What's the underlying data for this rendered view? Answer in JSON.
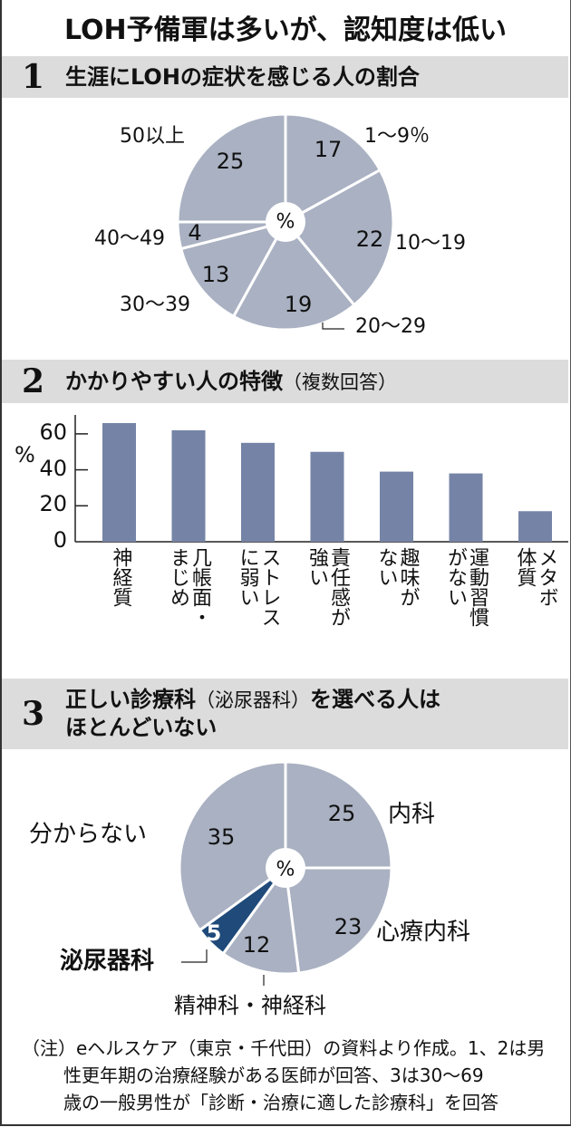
{
  "title": "LOH予備軍は多いが、認知度は低い",
  "colors": {
    "pie_fill": "#a9b1c2",
    "bar_fill": "#7584a6",
    "highlight_fill": "#1f4a7a",
    "header_bg": "#dcdcdc",
    "slice_separator": "#ffffff"
  },
  "sections": [
    {
      "num": "1",
      "title": "生涯にLOHの症状を感じる人の割合",
      "sub": ""
    },
    {
      "num": "2",
      "title": "かかりやすい人の特徴",
      "sub": "（複数回答）"
    },
    {
      "num": "3",
      "title": "正しい診療科",
      "sub": "（泌尿器科）",
      "title_rest": "を選べる人は",
      "title_line2": "ほとんどいない"
    }
  ],
  "chart_data": [
    {
      "type": "pie",
      "title": "生涯にLOHの症状を感じる人の割合",
      "unit": "%",
      "center_label": "%",
      "categories": [
        "1～9％",
        "10～19",
        "20～29",
        "30～39",
        "40～49",
        "50以上"
      ],
      "values": [
        17,
        22,
        19,
        13,
        4,
        25
      ],
      "start_angle_deg": 0,
      "direction": "clockwise"
    },
    {
      "type": "bar",
      "title": "かかりやすい人の特徴（複数回答）",
      "ylabel": "%",
      "ylim": [
        0,
        70
      ],
      "yticks": [
        0,
        20,
        40,
        60
      ],
      "categories": [
        "神経質",
        "几帳面・まじめ",
        "ストレスに弱い",
        "責任感が強い",
        "趣味がない",
        "運動習慣がない",
        "メタボ体質"
      ],
      "category_lines": [
        [
          "神経質"
        ],
        [
          "几帳面・",
          "まじめ"
        ],
        [
          "ストレス",
          "に弱い"
        ],
        [
          "責任感が",
          "強い"
        ],
        [
          "趣味が",
          "ない"
        ],
        [
          "運動習慣",
          "がない"
        ],
        [
          "メタボ",
          "体質"
        ]
      ],
      "values": [
        66,
        62,
        55,
        50,
        39,
        38,
        17
      ],
      "grid": false
    },
    {
      "type": "pie",
      "title": "正しい診療科（泌尿器科）を選べる人はほとんどいない",
      "unit": "%",
      "center_label": "%",
      "categories": [
        "内科",
        "心療内科",
        "精神科・神経科",
        "泌尿器科",
        "分からない"
      ],
      "values": [
        25,
        23,
        12,
        5,
        35
      ],
      "highlight": "泌尿器科",
      "start_angle_deg": 0,
      "direction": "clockwise"
    }
  ],
  "pie1_labels": {
    "l1": "1～9％",
    "l2": "10～19",
    "l3": "20～29",
    "l4": "30～39",
    "l5": "40～49",
    "l6": "50以上"
  },
  "pie3_labels": {
    "l1": "内科",
    "l2": "心療内科",
    "l3": "精神科・神経科",
    "l4": "泌尿器科",
    "l5": "分からない"
  },
  "note": {
    "line1": "（注）eヘルスケア（東京・千代田）の資料より作成。1、2は男",
    "line2": "性更年期の治療経験がある医師が回答、3は30～69",
    "line3": "歳の一般男性が「診断・治療に適した診療科」を回答"
  }
}
